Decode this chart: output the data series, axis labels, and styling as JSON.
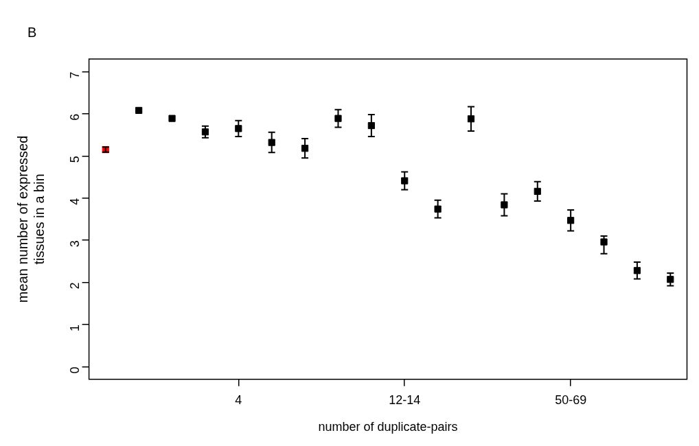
{
  "chart_data": {
    "type": "scatter",
    "xlabel": "number of duplicate-pairs",
    "ylabel": "mean number of expressed\ntissues in a bin",
    "annotations": [
      "B"
    ],
    "categories": [
      null,
      null,
      null,
      null,
      "4",
      null,
      null,
      null,
      null,
      "12-14",
      null,
      null,
      null,
      null,
      "50-69",
      null,
      null,
      null
    ],
    "values": [
      5.15,
      6.08,
      5.89,
      5.57,
      5.65,
      5.32,
      5.18,
      5.89,
      5.72,
      4.41,
      3.74,
      5.88,
      3.84,
      4.16,
      3.47,
      2.96,
      2.28,
      2.07
    ],
    "errors": [
      0.06,
      null,
      null,
      0.14,
      0.19,
      0.24,
      0.23,
      0.21,
      0.26,
      0.21,
      0.21,
      0.29,
      0.26,
      0.23,
      0.25,
      [
        2.68,
        3.1
      ],
      0.2,
      0.15
    ],
    "colors": [
      "#ff0000",
      "#000000",
      "#000000",
      "#000000",
      "#000000",
      "#000000",
      "#000000",
      "#000000",
      "#000000",
      "#000000",
      "#000000",
      "#000000",
      "#000000",
      "#000000",
      "#000000",
      "#000000",
      "#000000",
      "#000000"
    ],
    "ylim": [
      -0.3,
      7.3
    ],
    "yticks": [
      0,
      1,
      2,
      3,
      4,
      5,
      6,
      7
    ],
    "marker": "square",
    "grid": false,
    "legend": false
  }
}
